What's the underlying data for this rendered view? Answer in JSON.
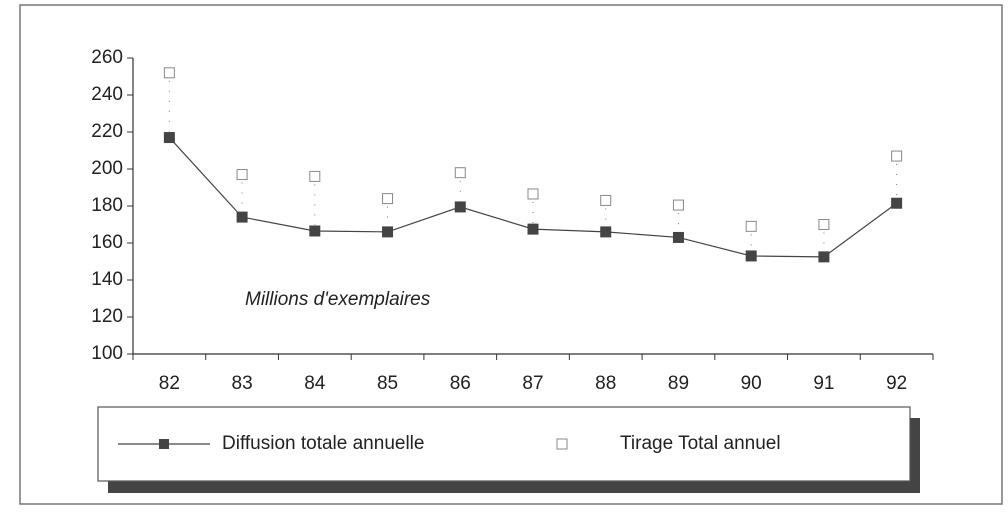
{
  "chart_data": {
    "type": "line",
    "annotation": "Millions d'exemplaires",
    "categories": [
      "82",
      "83",
      "84",
      "85",
      "86",
      "87",
      "88",
      "89",
      "90",
      "91",
      "92"
    ],
    "series": [
      {
        "name": "Diffusion totale annuelle",
        "color": "#444444",
        "marker": "filled-square",
        "values": [
          217,
          174,
          166.5,
          166,
          179.5,
          167.5,
          166,
          163,
          153,
          152.5,
          181.5
        ]
      },
      {
        "name": "Tirage Total annuel",
        "color": "#888888",
        "marker": "open-square",
        "values": [
          252,
          197,
          196,
          184,
          198,
          186.5,
          183,
          180.5,
          169,
          170,
          207
        ]
      }
    ],
    "ylim": [
      100,
      260
    ],
    "yticks": [
      100,
      120,
      140,
      160,
      180,
      200,
      220,
      240,
      260
    ]
  }
}
